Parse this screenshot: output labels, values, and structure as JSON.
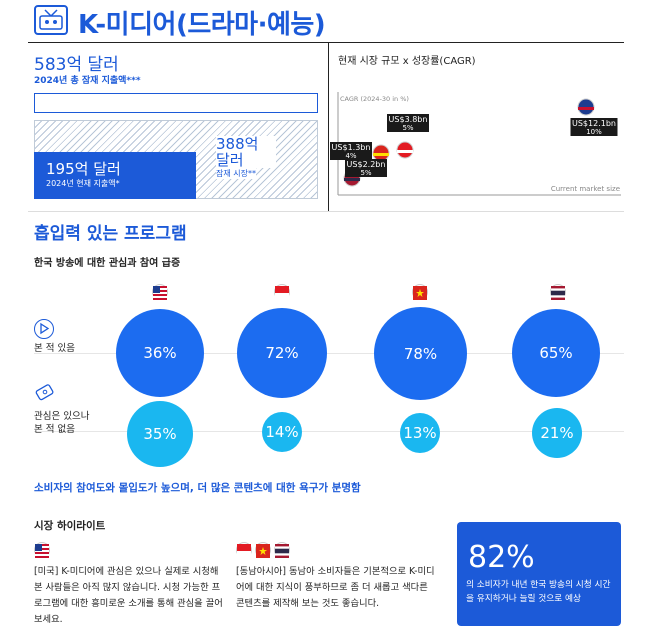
{
  "header": {
    "title": "K-미디어(드라마·예능)",
    "icon": "tv-icon"
  },
  "market": {
    "total_value": "583억 달러",
    "total_label": "2024년 총 잠재 지출액***",
    "current_value": "195억 달러",
    "current_label": "2024년 현재 지출액*",
    "remaining_value": "388억 달러",
    "remaining_label": "잠재 시장**"
  },
  "scatter_title": "현재 시장 규모 x 성장률(CAGR)",
  "bubble_section": {
    "title": "흡입력 있는 프로그램",
    "subtitle": "한국 방송에 대한 관심과 참여 급증",
    "row1_label": "본 적 있음",
    "row2_label_1": "관심은 있으나",
    "row2_label_2": "본 적 없음",
    "conclusion": "소비자의 참여도와 몰입도가 높으며, 더 많은 콘텐츠에 대한 욕구가 분명함"
  },
  "chart_data": [
    {
      "type": "scatter",
      "title": "",
      "ylabel": "CAGR (2024-30 in %)",
      "xlabel": "Current market size",
      "points": [
        {
          "label": "US$12.1bn",
          "value": "10%",
          "flag": "US",
          "market_bn": 12.1,
          "cagr": 10
        },
        {
          "label": "US$3.8bn",
          "value": "5%",
          "flag": "ID",
          "market_bn": 3.8,
          "cagr": 5
        },
        {
          "label": "US$1.3bn",
          "value": "4%",
          "flag": "VN",
          "market_bn": 1.3,
          "cagr": 4
        },
        {
          "label": "US$2.2bn",
          "value": "5%",
          "flag": "TH",
          "market_bn": 2.2,
          "cagr": 5
        }
      ]
    },
    {
      "type": "bubble",
      "title": "",
      "categories": [
        "US",
        "ID",
        "VN",
        "TH"
      ],
      "series": [
        {
          "name": "본 적 있음",
          "values": [
            36,
            72,
            78,
            65
          ],
          "labels": [
            "36%",
            "72%",
            "78%",
            "65%"
          ]
        },
        {
          "name": "관심은 있으나 본 적 없음",
          "values": [
            35,
            14,
            13,
            21
          ],
          "labels": [
            "35%",
            "14%",
            "13%",
            "21%"
          ]
        }
      ]
    }
  ],
  "highlights": {
    "title": "시장 하이라이트",
    "us_text": "[미국] K-미디어에 관심은 있으나 실제로 시청해 본 사람들은 아직 많지 않습니다. 시청 가능한 프로그램에 대한 흥미로운 소개를 통해 관심을 끌어 보세요.",
    "sea_text": "[동남아시아] 동남아 소비자들은 기본적으로 K-미디어에 대한 지식이 풍부하므로 좀 더 새롭고 색다른 콘텐츠를 제작해 보는 것도 좋습니다.",
    "stat_value": "82%",
    "stat_text": "의 소비자가 내년 한국 방송의 시청 시간을 유지하거나 늘릴 것으로 예상"
  },
  "colors": {
    "brand": "#1c5ad8",
    "bubble_seen": "#1c6cf0",
    "bubble_interested": "#1ab7f0"
  }
}
